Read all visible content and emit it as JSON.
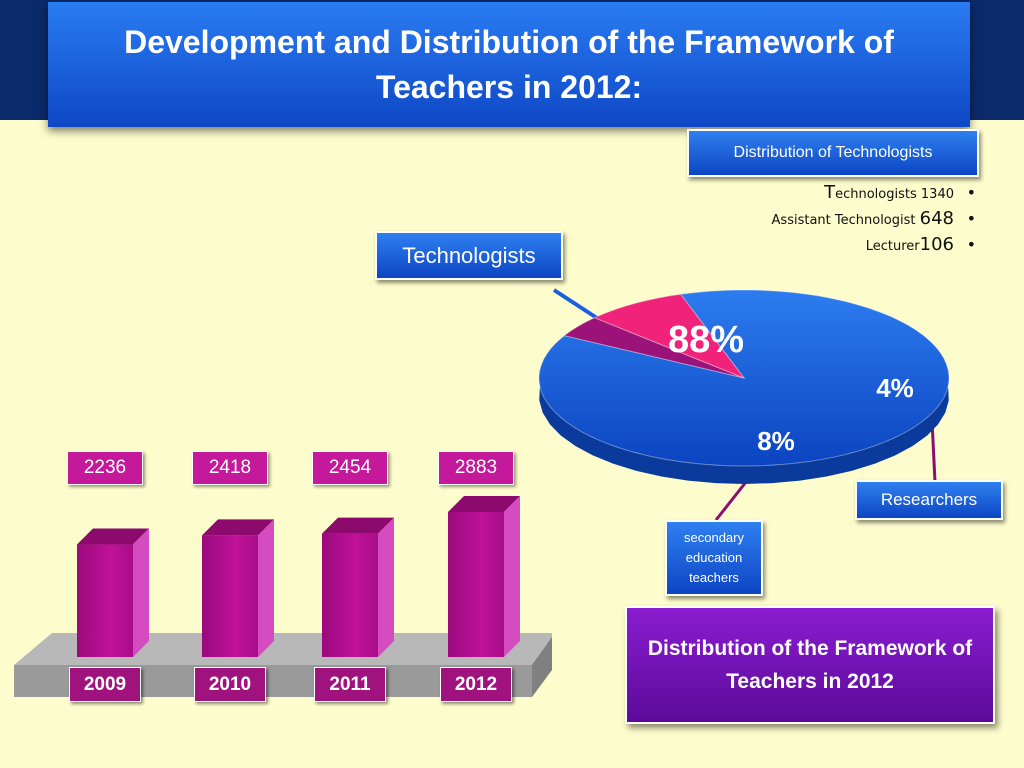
{
  "title": "Development and Distribution of the Framework of Teachers in 2012:",
  "technologist_distribution": {
    "heading": "Distribution of Technologists",
    "items": [
      {
        "initial": "T",
        "label": "echnologists",
        "value": "1340"
      },
      {
        "initial": "",
        "label": "Assistant Technologist",
        "value": "648"
      },
      {
        "initial": "",
        "label": "Lecturer",
        "value": "106"
      }
    ]
  },
  "labels": {
    "technologists": "Technologists",
    "researchers": "Researchers",
    "secondary": "secondary education teachers",
    "framework_box": "Distribution of the Framework of Teachers in 2012"
  },
  "chart_data": [
    {
      "type": "bar",
      "categories": [
        "2009",
        "2010",
        "2011",
        "2012"
      ],
      "values": [
        2236,
        2418,
        2454,
        2883
      ],
      "value_labels": [
        "2236",
        "2418",
        "2454",
        "2883"
      ],
      "colors": {
        "bar": "#b0108e",
        "label": "#c4199a"
      }
    },
    {
      "type": "pie",
      "slices": [
        {
          "label": "Technologists",
          "value": 88,
          "text": "88%",
          "color": "#0e55dc"
        },
        {
          "label": "Researchers",
          "value": 4,
          "text": "4%",
          "color": "#9b1279"
        },
        {
          "label": "secondary education teachers",
          "value": 8,
          "text": "8%",
          "color": "#f0227a"
        }
      ]
    }
  ],
  "colors": {
    "background": "#fdfccc",
    "title_blue": "#1660e0",
    "purple": "#7a16c0"
  }
}
